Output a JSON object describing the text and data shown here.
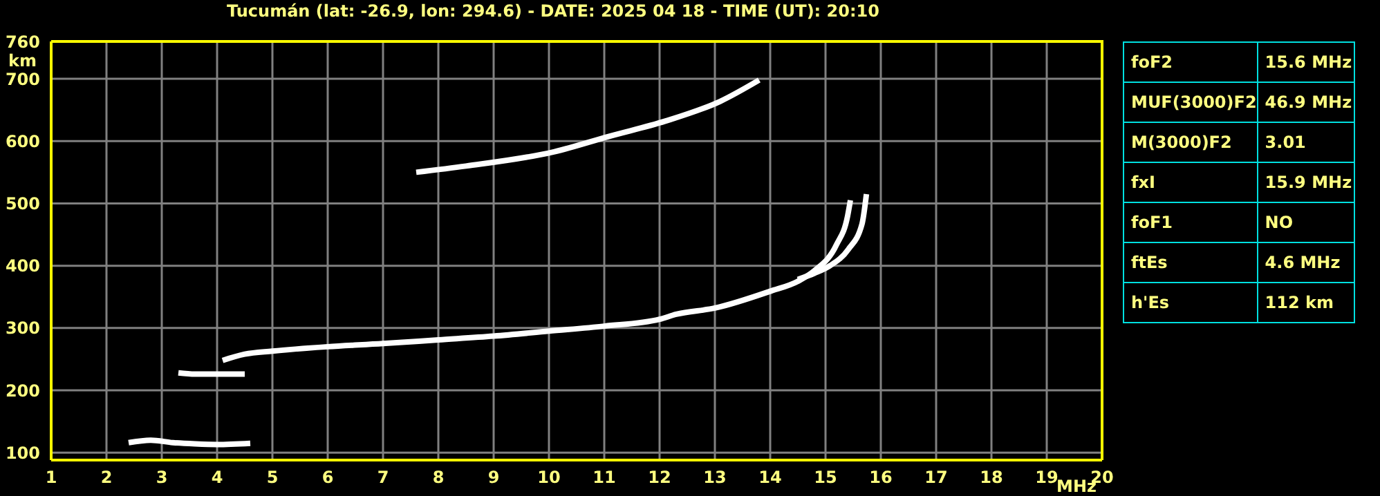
{
  "chart_data": {
    "type": "line",
    "title": "Tucumán (lat: -26.9, lon: 294.6) - DATE: 2025 04 18 - TIME (UT): 20:10",
    "xlabel": "MHz",
    "ylabel": "km",
    "xlim": [
      1,
      20
    ],
    "xticks": [
      1,
      2,
      3,
      4,
      5,
      6,
      7,
      8,
      9,
      10,
      11,
      12,
      13,
      14,
      15,
      16,
      17,
      18,
      19,
      20
    ],
    "ylim": [
      88,
      760
    ],
    "yticks": [
      100,
      200,
      300,
      400,
      500,
      600,
      700,
      760
    ],
    "grid": true,
    "marker": "none",
    "line_style": "solid",
    "series": [
      {
        "color": "#ffffff",
        "x": [
          2.4,
          2.8,
          3.2,
          3.6,
          4.0,
          4.6
        ],
        "values": [
          116,
          120,
          116,
          114,
          113,
          115
        ]
      },
      {
        "color": "#ffffff",
        "x": [
          3.3,
          3.6,
          4.0,
          4.5
        ],
        "values": [
          228,
          226,
          226,
          226
        ]
      },
      {
        "color": "#ffffff",
        "x": [
          4.1,
          4.5,
          5,
          6,
          7,
          8,
          9,
          10,
          11,
          12,
          12.3,
          13,
          14,
          14.5,
          14.8,
          15.2,
          15.4,
          15.45
        ],
        "values": [
          248,
          258,
          263,
          270,
          275,
          281,
          287,
          295,
          303,
          314,
          322,
          332,
          359,
          375,
          392,
          434,
          480,
          505
        ]
      },
      {
        "color": "#ffffff",
        "x": [
          14.5,
          14.8,
          15.08,
          15.41,
          15.66,
          15.74
        ],
        "values": [
          378,
          388,
          400,
          426,
          467,
          515
        ]
      },
      {
        "color": "#ffffff",
        "x": [
          7.6,
          8.5,
          10.1,
          11.1,
          12.1,
          13.1,
          13.8
        ],
        "values": [
          550,
          560,
          583,
          608,
          632,
          664,
          698
        ]
      }
    ],
    "annotations": [
      "foF2",
      "15.6 MHz",
      "MUF(3000)F2",
      "46.9 MHz",
      "M(3000)F2",
      "3.01",
      "fxI",
      "15.9 MHz",
      "foF1",
      "NO",
      "ftEs",
      "4.6 MHz",
      "h'Es",
      "112 km"
    ]
  }
}
